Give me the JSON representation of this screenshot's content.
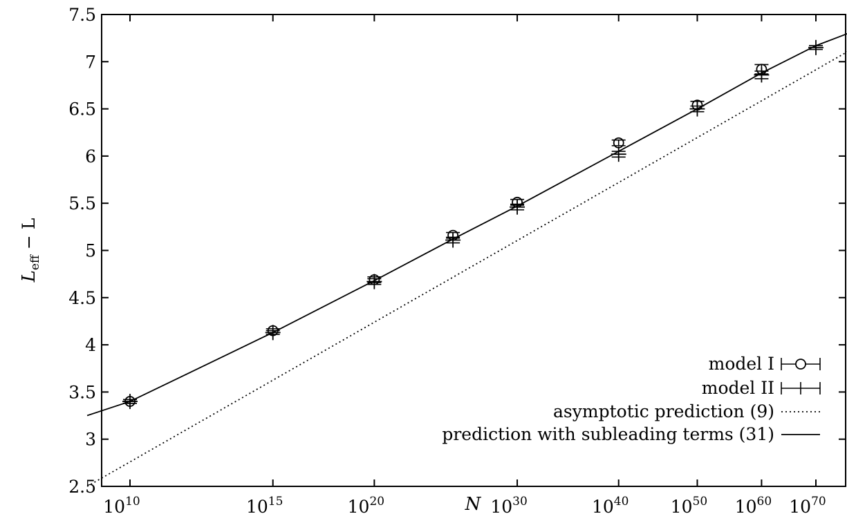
{
  "chart_data": {
    "type": "line",
    "xscale": "log10-of-log10",
    "x_ticks": [
      {
        "base": "10",
        "exp": "10",
        "value": 10000000000.0
      },
      {
        "base": "10",
        "exp": "15",
        "value": 1000000000000000.0
      },
      {
        "base": "10",
        "exp": "20",
        "value": 1e+20
      },
      {
        "base": "10",
        "exp": "30",
        "value": 1e+30
      },
      {
        "base": "10",
        "exp": "40",
        "value": 1e+40
      },
      {
        "base": "10",
        "exp": "50",
        "value": 1e+50
      },
      {
        "base": "10",
        "exp": "60",
        "value": 1e+60
      },
      {
        "base": "10",
        "exp": "70",
        "value": 1e+70
      }
    ],
    "xlim": [
      1000000000.0,
      1e+80
    ],
    "ylim": [
      2.5,
      7.5
    ],
    "y_ticks": [
      "2.5",
      "3",
      "3.5",
      "4",
      "4.5",
      "5",
      "5.5",
      "6",
      "6.5",
      "7",
      "7.5"
    ],
    "xlabel": "N",
    "ylabel_main": "L",
    "ylabel_sub": "eff",
    "ylabel_rest": " − L",
    "grid": false,
    "legend_position": "bottom-right",
    "series": [
      {
        "name": "model I",
        "marker": "circle-errorbar",
        "points": [
          {
            "x": 10000000000.0,
            "y": 3.4,
            "err": 0.02
          },
          {
            "x": 1000000000000000.0,
            "y": 4.15,
            "err": 0.02
          },
          {
            "x": 1e+20,
            "y": 4.69,
            "err": 0.03
          },
          {
            "x": 1e+25,
            "y": 5.16,
            "err": 0.03
          },
          {
            "x": 1e+30,
            "y": 5.51,
            "err": 0.03
          },
          {
            "x": 1e+40,
            "y": 6.14,
            "err": 0.03
          },
          {
            "x": 1e+50,
            "y": 6.54,
            "err": 0.04
          },
          {
            "x": 1e+60,
            "y": 6.92,
            "err": 0.05
          }
        ]
      },
      {
        "name": "model II",
        "marker": "plus-errorbar",
        "points": [
          {
            "x": 10000000000.0,
            "y": 3.4,
            "err": 0.02
          },
          {
            "x": 1000000000000000.0,
            "y": 4.13,
            "err": 0.02
          },
          {
            "x": 1e+20,
            "y": 4.67,
            "err": 0.03
          },
          {
            "x": 1e+25,
            "y": 5.11,
            "err": 0.03
          },
          {
            "x": 1e+30,
            "y": 5.46,
            "err": 0.03
          },
          {
            "x": 1e+40,
            "y": 6.02,
            "err": 0.03
          },
          {
            "x": 1e+50,
            "y": 6.5,
            "err": 0.03
          },
          {
            "x": 1e+60,
            "y": 6.86,
            "err": 0.04
          },
          {
            "x": 1e+70,
            "y": 7.15,
            "err": 0.02
          }
        ]
      },
      {
        "name": "asymptotic prediction (9)",
        "style": "dotted",
        "points": [
          {
            "x": 720000000.0,
            "y": 2.5
          },
          {
            "x": 1e+80,
            "y": 7.2
          }
        ]
      },
      {
        "name": "prediction with subleading terms (31)",
        "style": "solid",
        "points": [
          {
            "x": 720000000.0,
            "y": 3.25
          },
          {
            "x": 10000000000.0,
            "y": 3.4
          },
          {
            "x": 1000000000000000.0,
            "y": 4.13
          },
          {
            "x": 1e+20,
            "y": 4.68
          },
          {
            "x": 1e+25,
            "y": 5.12
          },
          {
            "x": 1e+30,
            "y": 5.47
          },
          {
            "x": 1e+40,
            "y": 6.05
          },
          {
            "x": 1e+50,
            "y": 6.5
          },
          {
            "x": 1e+60,
            "y": 6.88
          },
          {
            "x": 1e+70,
            "y": 7.17
          },
          {
            "x": 1e+80,
            "y": 7.36
          }
        ]
      }
    ]
  }
}
